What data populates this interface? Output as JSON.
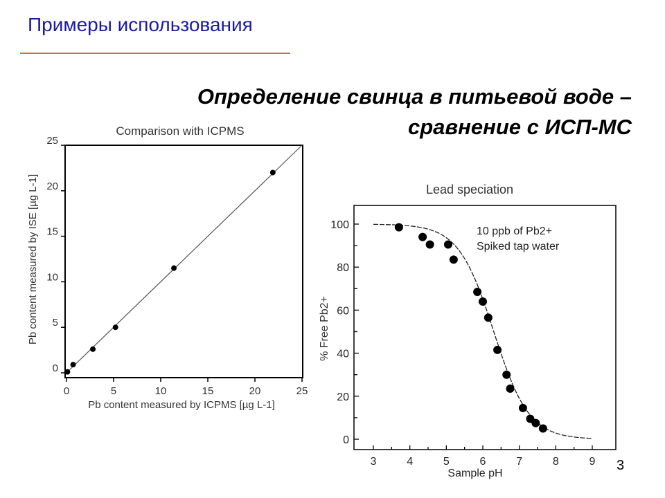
{
  "slide": {
    "title": "Примеры использования",
    "subtitle_line1": "Определение свинца в питьевой воде –",
    "subtitle_line2": "сравнение с ИСП-МС",
    "page_number": "3",
    "title_color": "#1a1aa6",
    "rule_color": "#c07840"
  },
  "chart_data": [
    {
      "type": "scatter",
      "title": "Comparison with ICPMS",
      "xlabel": "Pb content measured by ICPMS [µg L-1]",
      "ylabel": "Pb content measured by ISE [µg L-1]",
      "xlim": [
        0,
        25
      ],
      "ylim": [
        0,
        25
      ],
      "xticks": [
        "0",
        "5",
        "10",
        "15",
        "20",
        "25"
      ],
      "yticks": [
        "0",
        "5",
        "10",
        "15",
        "20",
        "25"
      ],
      "grid": false,
      "line": {
        "type": "identity",
        "from": [
          0,
          0
        ],
        "to": [
          25,
          25
        ]
      },
      "points": [
        {
          "x": 0.1,
          "y": 0.1
        },
        {
          "x": 0.7,
          "y": 0.9
        },
        {
          "x": 2.8,
          "y": 2.6
        },
        {
          "x": 5.2,
          "y": 5.0
        },
        {
          "x": 11.4,
          "y": 11.5
        },
        {
          "x": 21.9,
          "y": 22.0
        }
      ]
    },
    {
      "type": "scatter",
      "title": "Lead speciation",
      "xlabel": "Sample pH",
      "ylabel": "% Free Pb2+",
      "xlim": [
        2.5,
        9.6
      ],
      "ylim": [
        -5,
        110
      ],
      "xticks": [
        "3",
        "4",
        "5",
        "6",
        "7",
        "8",
        "9"
      ],
      "yticks": [
        "0",
        "20",
        "40",
        "60",
        "80",
        "100"
      ],
      "grid": false,
      "annotation_line1": "10 ppb of Pb2+",
      "annotation_line2": "Spiked tap water",
      "fit_curve": {
        "style": "dashed",
        "model": "sigmoid",
        "midpoint_pH": 6.3,
        "x_range": [
          3,
          9
        ]
      },
      "points": [
        {
          "x": 3.7,
          "y": 98.5
        },
        {
          "x": 4.35,
          "y": 94
        },
        {
          "x": 4.55,
          "y": 90.5
        },
        {
          "x": 5.05,
          "y": 90.5
        },
        {
          "x": 5.2,
          "y": 83.5
        },
        {
          "x": 5.85,
          "y": 68.5
        },
        {
          "x": 6.0,
          "y": 64
        },
        {
          "x": 6.15,
          "y": 56.5
        },
        {
          "x": 6.4,
          "y": 41.5
        },
        {
          "x": 6.65,
          "y": 30
        },
        {
          "x": 6.75,
          "y": 23.5
        },
        {
          "x": 7.1,
          "y": 14.5
        },
        {
          "x": 7.3,
          "y": 9.5
        },
        {
          "x": 7.45,
          "y": 7.5
        },
        {
          "x": 7.65,
          "y": 5
        }
      ]
    }
  ]
}
